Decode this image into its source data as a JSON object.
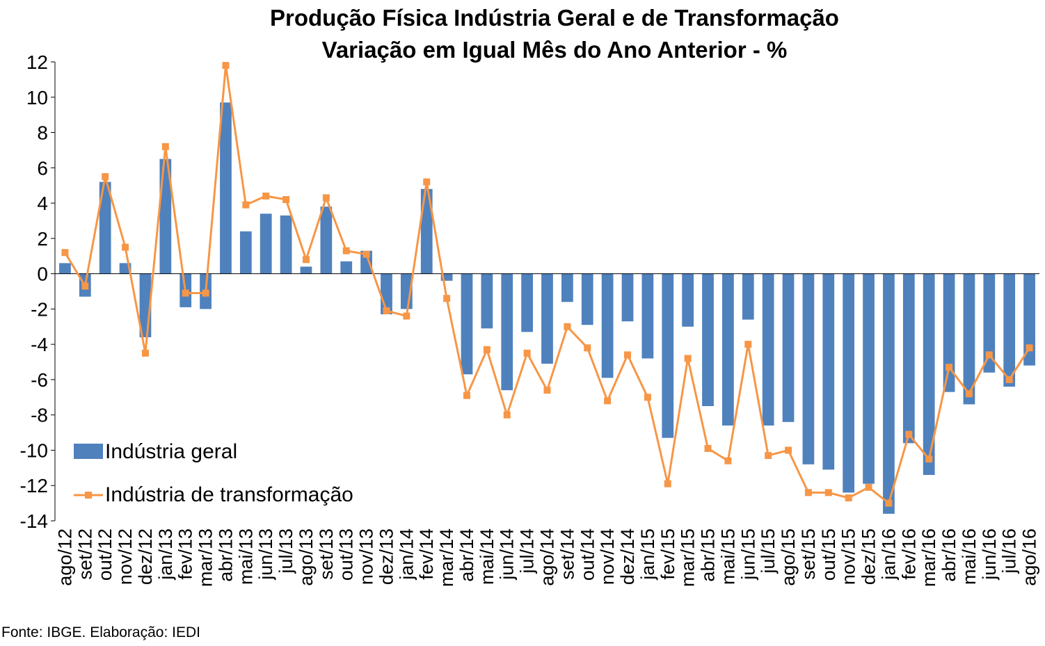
{
  "chart_data": {
    "type": "bar",
    "title": "Produção Física Indústria Geral e de Transformação",
    "subtitle": "Variação em Igual Mês do Ano Anterior - %",
    "xlabel": "",
    "ylabel": "",
    "ylim": [
      -14,
      12
    ],
    "yticks": [
      12,
      10,
      8,
      6,
      4,
      2,
      0,
      -2,
      -4,
      -6,
      -8,
      -10,
      -12,
      -14
    ],
    "grid": false,
    "legend_position": "bottom-left",
    "categories": [
      "ago/12",
      "set/12",
      "out/12",
      "nov/12",
      "dez/12",
      "jan/13",
      "fev/13",
      "mar/13",
      "abr/13",
      "mai/13",
      "jun/13",
      "jul/13",
      "ago/13",
      "set/13",
      "out/13",
      "nov/13",
      "dez/13",
      "jan/14",
      "fev/14",
      "mar/14",
      "abr/14",
      "mai/14",
      "jun/14",
      "jul/14",
      "ago/14",
      "set/14",
      "out/14",
      "nov/14",
      "dez/14",
      "jan/15",
      "fev/15",
      "mar/15",
      "abr/15",
      "mai/15",
      "jun/15",
      "jul/15",
      "ago/15",
      "set/15",
      "out/15",
      "nov/15",
      "dez/15",
      "jan/16",
      "fev/16",
      "mar/16",
      "abr/16",
      "mai/16",
      "jun/16",
      "jul/16",
      "ago/16"
    ],
    "series": [
      {
        "name": "Indústria geral",
        "type": "bar",
        "color": "#4F81BD",
        "values": [
          0.6,
          -1.3,
          5.2,
          0.6,
          -3.6,
          6.5,
          -1.9,
          -2.0,
          9.7,
          2.4,
          3.4,
          3.3,
          0.4,
          3.8,
          0.7,
          1.3,
          -2.3,
          -2.0,
          4.8,
          -0.4,
          -5.7,
          -3.1,
          -6.6,
          -3.3,
          -5.1,
          -1.6,
          -2.9,
          -5.9,
          -2.7,
          -4.8,
          -9.3,
          -3.0,
          -7.5,
          -8.6,
          -2.6,
          -8.6,
          -8.4,
          -10.8,
          -11.1,
          -12.4,
          -11.9,
          -13.6,
          -9.6,
          -11.4,
          -6.7,
          -7.4,
          -5.6,
          -6.4,
          -5.2
        ]
      },
      {
        "name": "Indústria de transformação",
        "type": "line",
        "color": "#F79646",
        "values": [
          1.2,
          -0.7,
          5.5,
          1.5,
          -4.5,
          7.2,
          -1.1,
          -1.1,
          11.8,
          3.9,
          4.4,
          4.2,
          0.8,
          4.3,
          1.3,
          1.1,
          -2.1,
          -2.4,
          5.2,
          -1.4,
          -6.9,
          -4.3,
          -8.0,
          -4.5,
          -6.6,
          -3.0,
          -4.2,
          -7.2,
          -4.6,
          -7.0,
          -11.9,
          -4.8,
          -9.9,
          -10.6,
          -4.0,
          -10.3,
          -10.0,
          -12.4,
          -12.4,
          -12.7,
          -12.1,
          -13.0,
          -9.1,
          -10.5,
          -5.3,
          -6.8,
          -4.6,
          -6.0,
          -4.2
        ]
      }
    ]
  },
  "source": "Fonte: IBGE. Elaboração: IEDI"
}
